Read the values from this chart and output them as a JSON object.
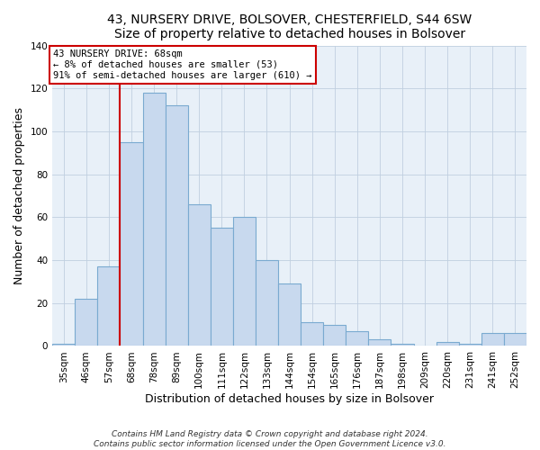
{
  "title": "43, NURSERY DRIVE, BOLSOVER, CHESTERFIELD, S44 6SW",
  "subtitle": "Size of property relative to detached houses in Bolsover",
  "xlabel": "Distribution of detached houses by size in Bolsover",
  "ylabel": "Number of detached properties",
  "bar_color": "#c8d9ee",
  "bar_edge_color": "#7aaad0",
  "bg_color": "#e8f0f8",
  "grid_color": "#c0cfe0",
  "categories": [
    "35sqm",
    "46sqm",
    "57sqm",
    "68sqm",
    "78sqm",
    "89sqm",
    "100sqm",
    "111sqm",
    "122sqm",
    "133sqm",
    "144sqm",
    "154sqm",
    "165sqm",
    "176sqm",
    "187sqm",
    "198sqm",
    "209sqm",
    "220sqm",
    "231sqm",
    "241sqm",
    "252sqm"
  ],
  "values": [
    1,
    22,
    37,
    95,
    118,
    112,
    66,
    55,
    60,
    40,
    29,
    11,
    10,
    7,
    3,
    1,
    0,
    2,
    1,
    6,
    6
  ],
  "ylim": [
    0,
    140
  ],
  "yticks": [
    0,
    20,
    40,
    60,
    80,
    100,
    120,
    140
  ],
  "property_label": "43 NURSERY DRIVE: 68sqm",
  "smaller_pct": 8,
  "smaller_count": 53,
  "larger_pct": 91,
  "larger_count": 610,
  "vline_color": "#cc0000",
  "annotation_box_edge": "#cc0000",
  "footer1": "Contains HM Land Registry data © Crown copyright and database right 2024.",
  "footer2": "Contains public sector information licensed under the Open Government Licence v3.0.",
  "title_fontsize": 10,
  "tick_fontsize": 7.5,
  "label_fontsize": 9,
  "footer_fontsize": 6.5
}
